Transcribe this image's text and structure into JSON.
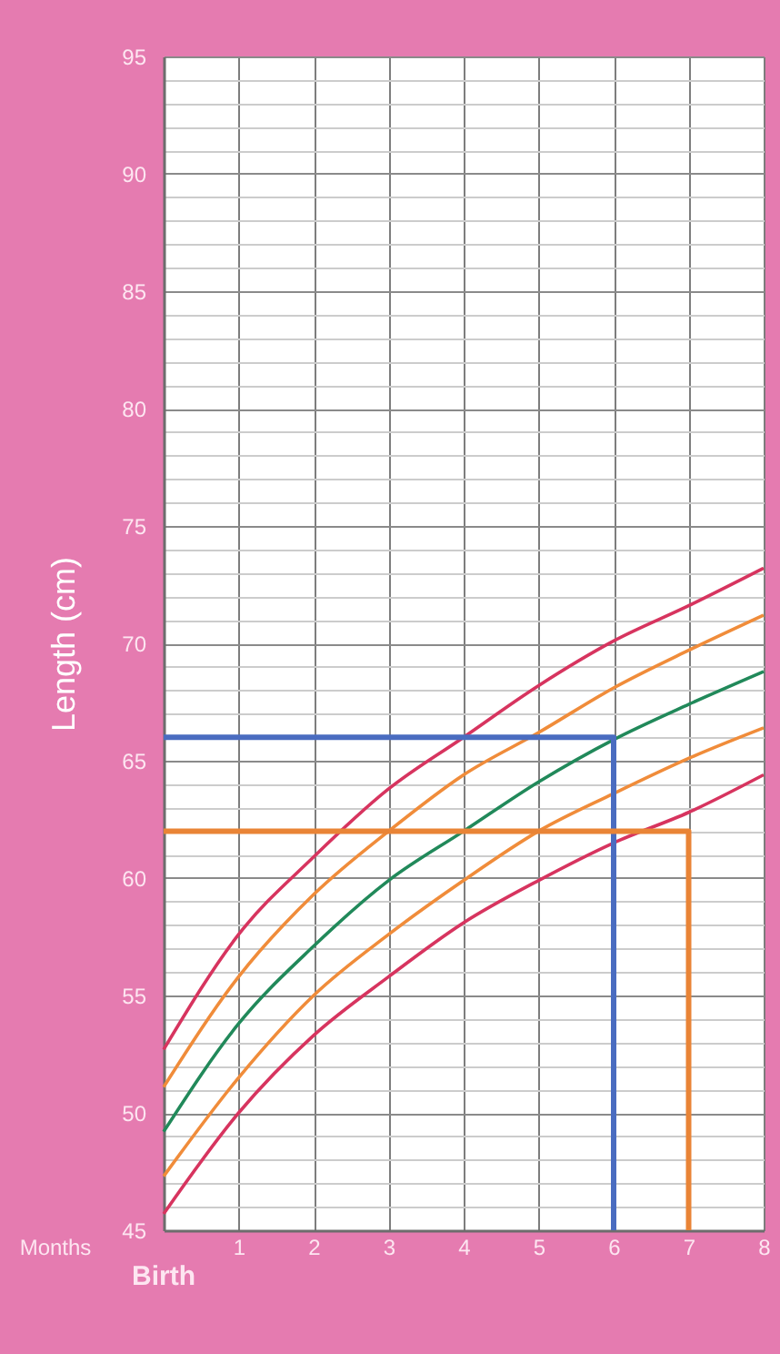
{
  "chart_data": {
    "type": "line",
    "xlabel": "Months",
    "ylabel": "Length (cm)",
    "x": [
      0,
      1,
      2,
      3,
      4,
      5,
      6,
      7,
      8
    ],
    "xlim": [
      0,
      8
    ],
    "xticks": [
      1,
      2,
      3,
      4,
      5,
      6,
      7,
      8
    ],
    "ylim": [
      45,
      95
    ],
    "yticks": [
      45,
      {
        "value": 46,
        "label": null
      },
      {
        "value": 47,
        "label": null
      },
      {
        "value": 48,
        "label": null
      },
      {
        "value": 49,
        "label": null
      },
      50,
      {
        "value": 51,
        "label": null
      },
      {
        "value": 52,
        "label": null
      },
      {
        "value": 53,
        "label": null
      },
      {
        "value": 54,
        "label": null
      },
      55,
      {
        "value": 56,
        "label": null
      },
      {
        "value": 57,
        "label": null
      },
      {
        "value": 58,
        "label": null
      },
      {
        "value": 59,
        "label": null
      },
      60,
      {
        "value": 61,
        "label": null
      },
      {
        "value": 62,
        "label": null
      },
      {
        "value": 63,
        "label": null
      },
      {
        "value": 64,
        "label": null
      },
      65,
      {
        "value": 66,
        "label": null
      },
      {
        "value": 67,
        "label": null
      },
      {
        "value": 68,
        "label": null
      },
      {
        "value": 69,
        "label": null
      },
      70,
      {
        "value": 71,
        "label": null
      },
      {
        "value": 72,
        "label": null
      },
      {
        "value": 73,
        "label": null
      },
      {
        "value": 74,
        "label": null
      },
      75,
      {
        "value": 76,
        "label": null
      },
      {
        "value": 77,
        "label": null
      },
      {
        "value": 78,
        "label": null
      },
      {
        "value": 79,
        "label": null
      },
      80,
      {
        "value": 81,
        "label": null
      },
      {
        "value": 82,
        "label": null
      },
      {
        "value": 83,
        "label": null
      },
      {
        "value": 84,
        "label": null
      },
      85,
      {
        "value": 86,
        "label": null
      },
      {
        "value": 87,
        "label": null
      },
      {
        "value": 88,
        "label": null
      },
      {
        "value": 89,
        "label": null
      },
      90,
      {
        "value": 91,
        "label": null
      },
      {
        "value": 92,
        "label": null
      },
      {
        "value": 93,
        "label": null
      },
      {
        "value": 94,
        "label": null
      },
      95
    ],
    "grid": true,
    "annotations": [
      "Birth"
    ],
    "series": [
      {
        "color": "#d7345f",
        "values": [
          52.7,
          57.6,
          60.9,
          63.8,
          66.0,
          68.2,
          70.1,
          71.6,
          73.2
        ]
      },
      {
        "color": "#f08c3a",
        "values": [
          51.1,
          55.8,
          59.3,
          62.0,
          64.4,
          66.2,
          68.1,
          69.7,
          71.2
        ]
      },
      {
        "color": "#21895a",
        "values": [
          49.2,
          53.8,
          57.1,
          59.9,
          62.0,
          64.1,
          65.9,
          67.4,
          68.8
        ]
      },
      {
        "color": "#f08c3a",
        "values": [
          47.3,
          51.5,
          55.0,
          57.6,
          59.9,
          62.0,
          63.6,
          65.1,
          66.4
        ]
      },
      {
        "color": "#d7345f",
        "values": [
          45.7,
          50.0,
          53.3,
          55.8,
          58.1,
          59.9,
          61.5,
          62.8,
          64.4
        ]
      },
      {
        "color": "#4a6cc0",
        "x": [
          0,
          6,
          6
        ],
        "values": [
          66,
          66,
          45
        ]
      },
      {
        "color": "#e98436",
        "x": [
          0,
          7,
          7
        ],
        "values": [
          62,
          62,
          45
        ]
      }
    ]
  }
}
